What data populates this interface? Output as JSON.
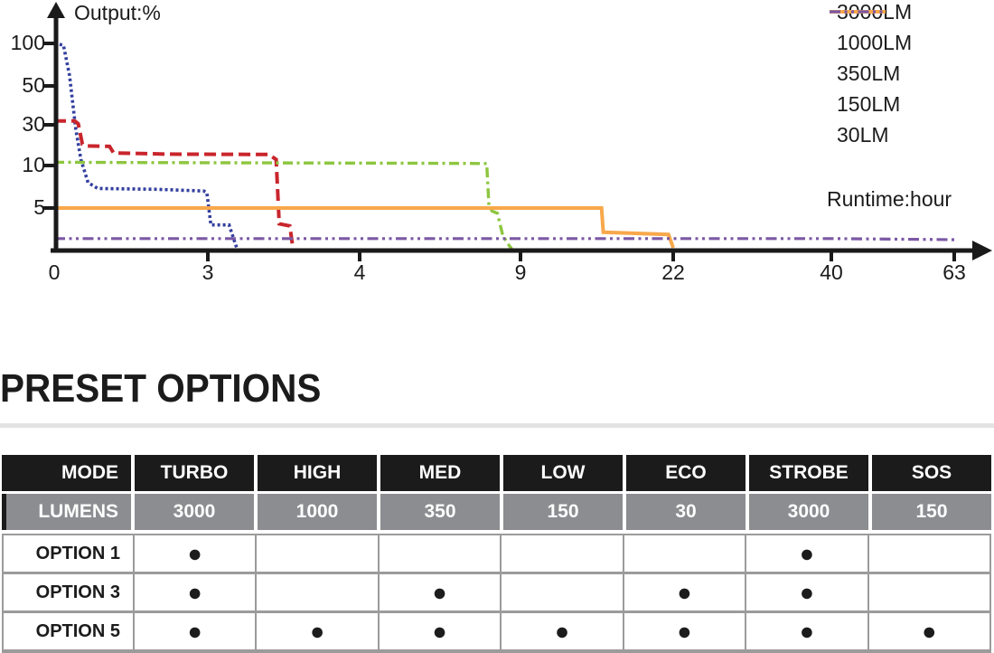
{
  "chart": {
    "y_axis_label": "Output:%",
    "x_axis_label": "Runtime:hour",
    "y_tick_labels": [
      "100",
      "50",
      "30",
      "10",
      "5"
    ],
    "x_tick_labels": [
      "0",
      "3",
      "4",
      "9",
      "22",
      "40",
      "63"
    ]
  },
  "chart_data": {
    "type": "line",
    "title": "",
    "xlabel": "Runtime:hour",
    "ylabel": "Output:%",
    "x_ticks": [
      0,
      3,
      4,
      9,
      22,
      40,
      63
    ],
    "y_ticks": [
      100,
      50,
      30,
      10,
      5
    ],
    "x_scale": "non-linear segmented (equal spacing between labeled ticks)",
    "y_scale": "non-linear segmented (equal spacing between labeled ticks)",
    "grid": false,
    "legend_position": "top-right",
    "series": [
      {
        "name": "3000LM",
        "color": "#333f9e",
        "style": "dotted",
        "points": [
          [
            0,
            100
          ],
          [
            0.18,
            98
          ],
          [
            0.3,
            62
          ],
          [
            0.42,
            28
          ],
          [
            0.52,
            13
          ],
          [
            0.66,
            8
          ],
          [
            0.85,
            7.3
          ],
          [
            2.0,
            7.2
          ],
          [
            2.92,
            7.0
          ],
          [
            2.98,
            6.8
          ],
          [
            3.02,
            3.4
          ],
          [
            3.14,
            3.4
          ],
          [
            3.19,
            0.5
          ]
        ]
      },
      {
        "name": "1000LM",
        "color": "#c9252c",
        "style": "dashed",
        "points": [
          [
            0,
            32
          ],
          [
            0.4,
            32
          ],
          [
            0.47,
            30.5
          ],
          [
            0.55,
            20.5
          ],
          [
            0.65,
            19.6
          ],
          [
            1.08,
            19.4
          ],
          [
            1.16,
            16.2
          ],
          [
            2.2,
            15.6
          ],
          [
            3.4,
            15.4
          ],
          [
            3.45,
            13
          ],
          [
            3.47,
            3.5
          ],
          [
            3.54,
            3.3
          ],
          [
            3.56,
            0.5
          ]
        ]
      },
      {
        "name": "350LM",
        "color": "#8dc63f",
        "style": "dashdot",
        "points": [
          [
            0,
            11.6
          ],
          [
            2,
            11.4
          ],
          [
            6,
            11.1
          ],
          [
            7.95,
            11
          ],
          [
            8.02,
            5.2
          ],
          [
            8.12,
            4.7
          ],
          [
            8.28,
            4.5
          ],
          [
            8.45,
            2.4
          ],
          [
            8.65,
            0.9
          ],
          [
            8.73,
            0.3
          ]
        ]
      },
      {
        "name": "150LM",
        "color": "#f8a84b",
        "style": "solid",
        "points": [
          [
            0,
            5
          ],
          [
            15.9,
            5
          ],
          [
            16.05,
            2.7
          ],
          [
            21.6,
            2.5
          ],
          [
            22,
            0.5
          ]
        ]
      },
      {
        "name": "30LM",
        "color": "#7b58a5",
        "style": "dashdotdot",
        "points": [
          [
            0,
            2.1
          ],
          [
            40,
            2.1
          ],
          [
            63.2,
            2.0
          ]
        ]
      }
    ]
  },
  "preset": {
    "title": "PRESET OPTIONS",
    "table": {
      "columns": [
        "MODE",
        "TURBO",
        "HIGH",
        "MED",
        "LOW",
        "ECO",
        "STROBE",
        "SOS"
      ],
      "lumens_label": "LUMENS",
      "lumens": [
        "3000",
        "1000",
        "350",
        "150",
        "30",
        "3000",
        "150"
      ],
      "rows": [
        {
          "label": "OPTION 1",
          "cells": [
            "●",
            "",
            "",
            "",
            "",
            "●",
            ""
          ]
        },
        {
          "label": "OPTION 3",
          "cells": [
            "●",
            "",
            "●",
            "",
            "●",
            "●",
            ""
          ]
        },
        {
          "label": "OPTION 5",
          "cells": [
            "●",
            "●",
            "●",
            "●",
            "●",
            "●",
            "●"
          ]
        }
      ]
    }
  },
  "palette": {
    "axis": "#1a1a1a",
    "table_header_bg": "#1b1b1b",
    "table_lumens_bg": "#8b8d90",
    "table_border": "#9b9b9b",
    "dot": "#1c1c1c",
    "title_rule": "#e3e3e3"
  }
}
